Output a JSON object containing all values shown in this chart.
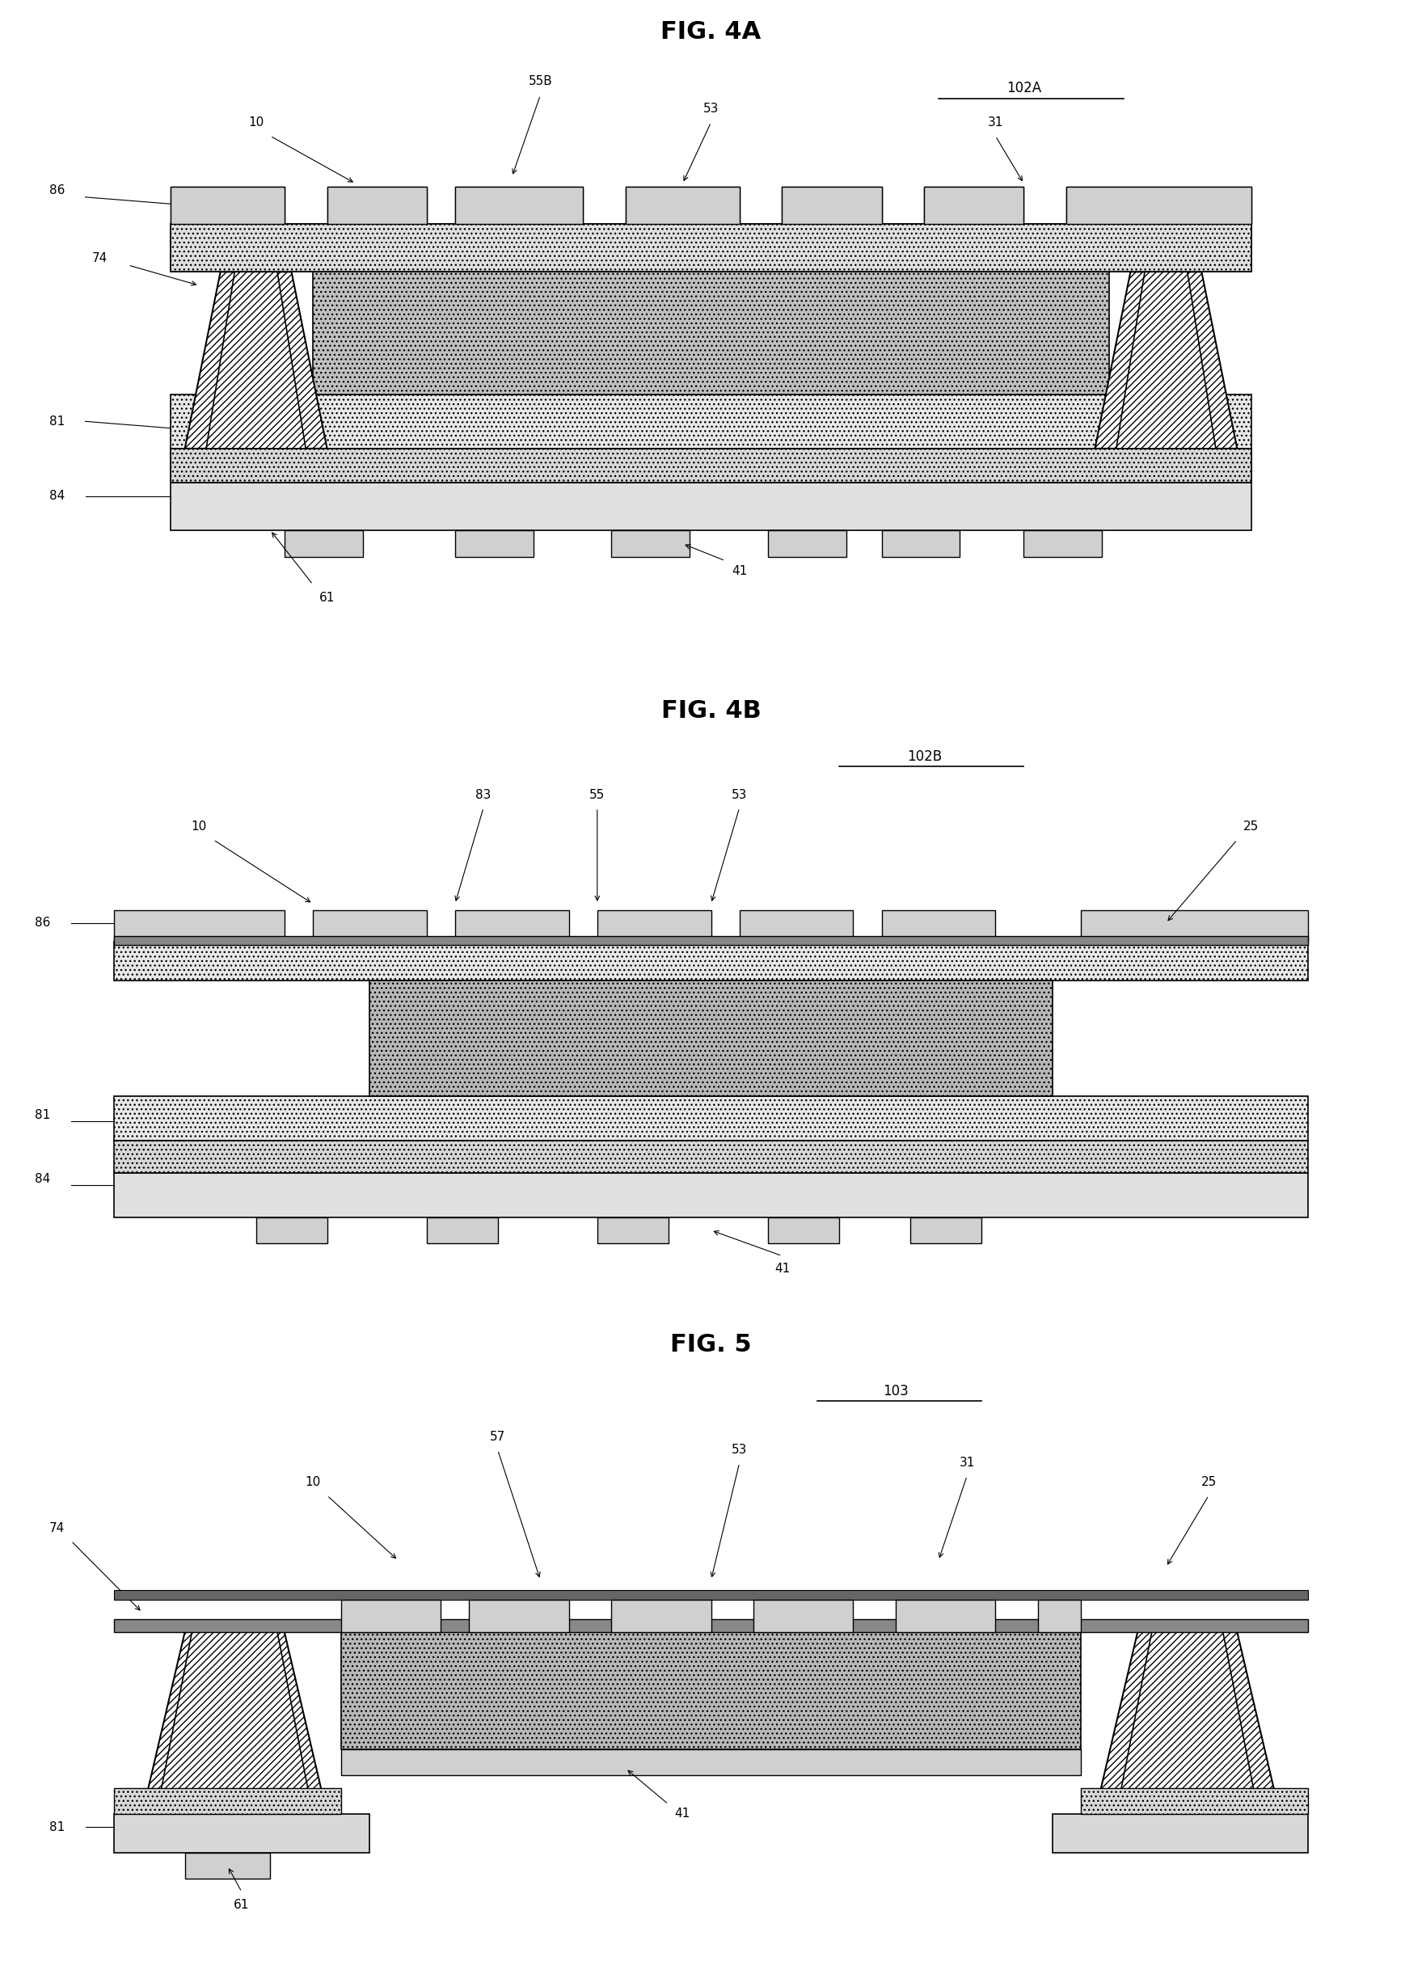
{
  "fig_title_4A": "FIG. 4A",
  "fig_title_4B": "FIG. 4B",
  "fig_title_5": "FIG. 5",
  "label_102A": "102A",
  "label_102B": "102B",
  "label_103": "103",
  "bg_color": "#ffffff",
  "line_color": "#000000",
  "hatch_wave": "~~~",
  "hatch_dot": "...",
  "hatch_diag": "////",
  "hatch_cross": "xxxx",
  "gray_fill": "#c8c8c8",
  "dark_gray": "#888888",
  "medium_gray": "#aaaaaa",
  "light_gray": "#dddddd"
}
